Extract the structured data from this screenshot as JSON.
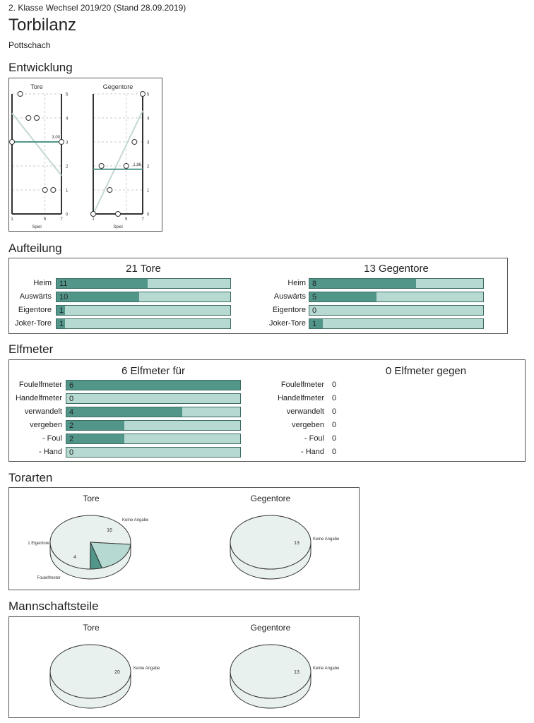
{
  "header": {
    "subtitle": "2. Klasse Wechsel 2019/20 (Stand 28.09.2019)",
    "title": "Torbilanz",
    "team": "Pottschach"
  },
  "sections": {
    "entwicklung": "Entwicklung",
    "aufteilung": "Aufteilung",
    "elfmeter": "Elfmeter",
    "torarten": "Torarten",
    "mannschaftsteile": "Mannschaftsteile"
  },
  "colors": {
    "dark": "#52968a",
    "light": "#b6d9d2",
    "pie_light": "#e8f1ee",
    "trend": "#c5d8d4"
  },
  "chart_data": [
    {
      "type": "scatter",
      "title": "Tore",
      "xlabel": "Spiel",
      "x_ticks": [
        "1",
        "5",
        "7"
      ],
      "y_ticks": [
        "0",
        "1",
        "2",
        "3",
        "4",
        "5"
      ],
      "ylim": [
        0,
        5
      ],
      "xlim": [
        1,
        7
      ],
      "x": [
        1,
        2,
        3,
        4,
        5,
        6,
        7
      ],
      "y": [
        3,
        5,
        4,
        4,
        1,
        1,
        3
      ],
      "average": 3.0,
      "average_label": "3.00",
      "trend": [
        4.2,
        1.6
      ]
    },
    {
      "type": "scatter",
      "title": "Gegentore",
      "xlabel": "Spiel",
      "x_ticks": [
        "1",
        "5",
        "7"
      ],
      "y_ticks": [
        "0",
        "1",
        "2",
        "3",
        "4",
        "5"
      ],
      "ylim": [
        0,
        5
      ],
      "xlim": [
        1,
        7
      ],
      "x": [
        1,
        2,
        3,
        4,
        5,
        6,
        7
      ],
      "y": [
        0,
        2,
        1,
        0,
        2,
        3,
        5
      ],
      "average": 1.86,
      "average_label": "1.86",
      "trend": [
        0.0,
        4.3
      ]
    },
    {
      "type": "bar",
      "title": "21 Tore",
      "max": 21,
      "categories": [
        "Heim",
        "Auswärts",
        "Eigentore",
        "Joker-Tore"
      ],
      "values": [
        11,
        10,
        1,
        1
      ],
      "labels": [
        "11",
        "10",
        "1",
        "1"
      ]
    },
    {
      "type": "bar",
      "title": "13 Gegentore",
      "max": 13,
      "categories": [
        "Heim",
        "Auswärts",
        "Eigentore",
        "Joker-Tore"
      ],
      "values": [
        8,
        5,
        0,
        1
      ],
      "labels": [
        "8",
        "5",
        "0",
        "1"
      ]
    },
    {
      "type": "bar",
      "title": "6 Elfmeter für",
      "max": 6,
      "categories": [
        "Foulelfmeter",
        "Handelfmeter",
        "verwandelt",
        "vergeben",
        "- Foul",
        "- Hand"
      ],
      "values": [
        6,
        0,
        4,
        2,
        2,
        0
      ],
      "labels": [
        "6",
        "0",
        "4",
        "2",
        "2",
        "0"
      ]
    },
    {
      "type": "table",
      "title": "0 Elfmeter gegen",
      "categories": [
        "Foulelfmeter",
        "Handelfmeter",
        "verwandelt",
        "vergeben",
        "- Foul",
        "- Hand"
      ],
      "values": [
        "0",
        "0",
        "0",
        "0",
        "0",
        "0"
      ]
    },
    {
      "type": "pie",
      "title": "Tore",
      "slices": [
        {
          "name": "Keine Angabe",
          "value": 16,
          "label": "16"
        },
        {
          "name": "Eigentore",
          "value": 1,
          "label": "1 Eigentore"
        },
        {
          "name": "Foulelfmeter",
          "value": 4,
          "label": "4"
        }
      ]
    },
    {
      "type": "pie",
      "title": "Gegentore",
      "slices": [
        {
          "name": "Keine Angabe",
          "value": 13,
          "label": "13"
        }
      ]
    },
    {
      "type": "pie",
      "title": "Tore",
      "slices": [
        {
          "name": "Keine Angabe",
          "value": 20,
          "label": "20"
        }
      ]
    },
    {
      "type": "pie",
      "title": "Gegentore",
      "slices": [
        {
          "name": "Keine Angabe",
          "value": 13,
          "label": "13"
        }
      ]
    }
  ]
}
